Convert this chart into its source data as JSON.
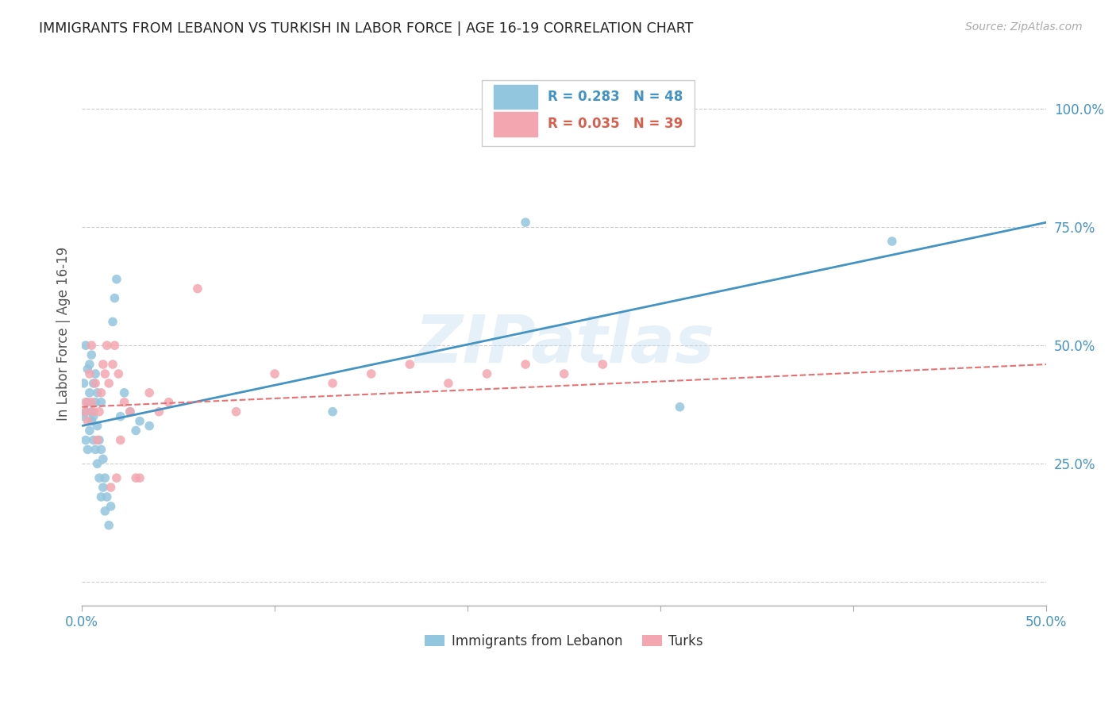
{
  "title": "IMMIGRANTS FROM LEBANON VS TURKISH IN LABOR FORCE | AGE 16-19 CORRELATION CHART",
  "source": "Source: ZipAtlas.com",
  "ylabel": "In Labor Force | Age 16-19",
  "xlim": [
    0.0,
    0.5
  ],
  "ylim": [
    -0.05,
    1.1
  ],
  "x_ticks": [
    0.0,
    0.1,
    0.2,
    0.3,
    0.4,
    0.5
  ],
  "x_tick_labels": [
    "0.0%",
    "",
    "",
    "",
    "",
    "50.0%"
  ],
  "y_ticks": [
    0.0,
    0.25,
    0.5,
    0.75,
    1.0
  ],
  "y_tick_labels": [
    "",
    "25.0%",
    "50.0%",
    "75.0%",
    "100.0%"
  ],
  "lebanon_color": "#92c5de",
  "turkey_color": "#f4a6b0",
  "lebanon_R": 0.283,
  "lebanon_N": 48,
  "turkey_R": 0.035,
  "turkey_N": 39,
  "lebanon_line_color": "#4393c3",
  "turkey_line_color": "#e87070",
  "watermark": "ZIPatlas",
  "lebanon_x": [
    0.001,
    0.001,
    0.002,
    0.002,
    0.002,
    0.003,
    0.003,
    0.003,
    0.004,
    0.004,
    0.004,
    0.005,
    0.005,
    0.005,
    0.006,
    0.006,
    0.006,
    0.007,
    0.007,
    0.007,
    0.008,
    0.008,
    0.008,
    0.009,
    0.009,
    0.01,
    0.01,
    0.01,
    0.011,
    0.011,
    0.012,
    0.012,
    0.013,
    0.014,
    0.015,
    0.016,
    0.017,
    0.018,
    0.02,
    0.022,
    0.025,
    0.028,
    0.03,
    0.035,
    0.13,
    0.23,
    0.31,
    0.42
  ],
  "lebanon_y": [
    0.35,
    0.42,
    0.3,
    0.36,
    0.5,
    0.28,
    0.38,
    0.45,
    0.32,
    0.4,
    0.46,
    0.34,
    0.36,
    0.48,
    0.3,
    0.35,
    0.42,
    0.28,
    0.38,
    0.44,
    0.25,
    0.33,
    0.4,
    0.22,
    0.3,
    0.18,
    0.28,
    0.38,
    0.2,
    0.26,
    0.15,
    0.22,
    0.18,
    0.12,
    0.16,
    0.55,
    0.6,
    0.64,
    0.35,
    0.4,
    0.36,
    0.32,
    0.34,
    0.33,
    0.36,
    0.76,
    0.37,
    0.72
  ],
  "turkey_x": [
    0.002,
    0.002,
    0.003,
    0.004,
    0.005,
    0.005,
    0.006,
    0.007,
    0.008,
    0.009,
    0.01,
    0.011,
    0.012,
    0.013,
    0.014,
    0.015,
    0.016,
    0.017,
    0.018,
    0.019,
    0.02,
    0.022,
    0.025,
    0.028,
    0.03,
    0.035,
    0.04,
    0.045,
    0.06,
    0.08,
    0.1,
    0.13,
    0.15,
    0.17,
    0.19,
    0.21,
    0.23,
    0.25,
    0.27
  ],
  "turkey_y": [
    0.36,
    0.38,
    0.34,
    0.44,
    0.38,
    0.5,
    0.36,
    0.42,
    0.3,
    0.36,
    0.4,
    0.46,
    0.44,
    0.5,
    0.42,
    0.2,
    0.46,
    0.5,
    0.22,
    0.44,
    0.3,
    0.38,
    0.36,
    0.22,
    0.22,
    0.4,
    0.36,
    0.38,
    0.62,
    0.36,
    0.44,
    0.42,
    0.44,
    0.46,
    0.42,
    0.44,
    0.46,
    0.44,
    0.46
  ],
  "background_color": "#ffffff",
  "grid_color": "#cccccc",
  "tick_color": "#4393c3",
  "title_color": "#222222",
  "legend_R_color_lebanon": "#4393c3",
  "legend_R_color_turkey": "#d6604d"
}
